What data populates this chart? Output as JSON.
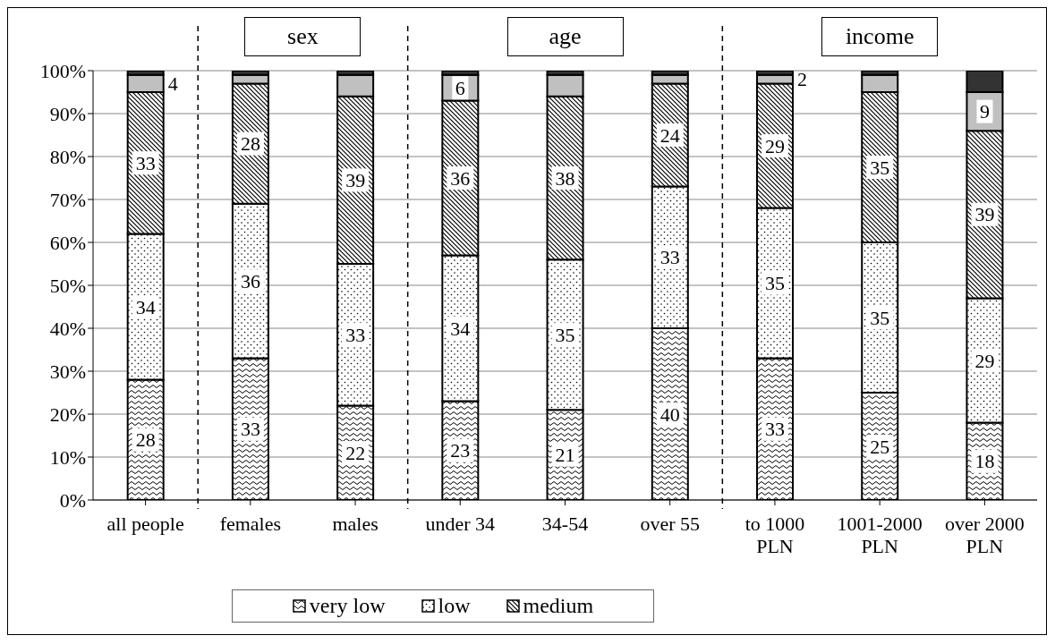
{
  "chart_data": {
    "type": "bar",
    "stacked": true,
    "categories": [
      "all people",
      "females",
      "males",
      "under 34",
      "34-54",
      "over 55",
      "to 1000 PLN",
      "1001-2000 PLN",
      "over 2000 PLN"
    ],
    "series": [
      {
        "name": "very low",
        "color": "#000000",
        "values": [
          28,
          33,
          22,
          23,
          21,
          40,
          33,
          25,
          18
        ],
        "value_labels": [
          "28",
          "33",
          "22",
          "23",
          "21",
          "40",
          "33",
          "25",
          "18"
        ]
      },
      {
        "name": "low",
        "color": "#000000",
        "values": [
          34,
          36,
          33,
          34,
          35,
          33,
          35,
          35,
          29
        ],
        "value_labels": [
          "34",
          "36",
          "33",
          "34",
          "35",
          "33",
          "35",
          "35",
          "29"
        ]
      },
      {
        "name": "medium",
        "color": "#000000",
        "values": [
          33,
          28,
          39,
          36,
          38,
          24,
          29,
          35,
          39
        ],
        "value_labels": [
          "33",
          "28",
          "39",
          "36",
          "38",
          "24",
          "29",
          "35",
          "39"
        ]
      },
      {
        "color": "#c0c0c0",
        "values": [
          4,
          2,
          5,
          6,
          5,
          2,
          2,
          4,
          9
        ],
        "value_labels": [
          "4",
          null,
          null,
          "6",
          null,
          null,
          "2",
          null,
          "9"
        ]
      },
      {
        "color": "#333333",
        "values": [
          1,
          1,
          1,
          1,
          1,
          1,
          1,
          1,
          5
        ]
      }
    ],
    "ylim": [
      0,
      100
    ],
    "yticks": [
      {
        "value": 0,
        "label": "0%"
      },
      {
        "value": 10,
        "label": "10%"
      },
      {
        "value": 20,
        "label": "20%"
      },
      {
        "value": 30,
        "label": "30%"
      },
      {
        "value": 40,
        "label": "40%"
      },
      {
        "value": 50,
        "label": "50%"
      },
      {
        "value": 60,
        "label": "60%"
      },
      {
        "value": 70,
        "label": "70%"
      },
      {
        "value": 80,
        "label": "80%"
      },
      {
        "value": 90,
        "label": "90%"
      },
      {
        "value": 100,
        "label": "100%"
      }
    ],
    "grid": "y",
    "legend": "bottom",
    "annotations": [
      "sex",
      "age",
      "income"
    ]
  }
}
